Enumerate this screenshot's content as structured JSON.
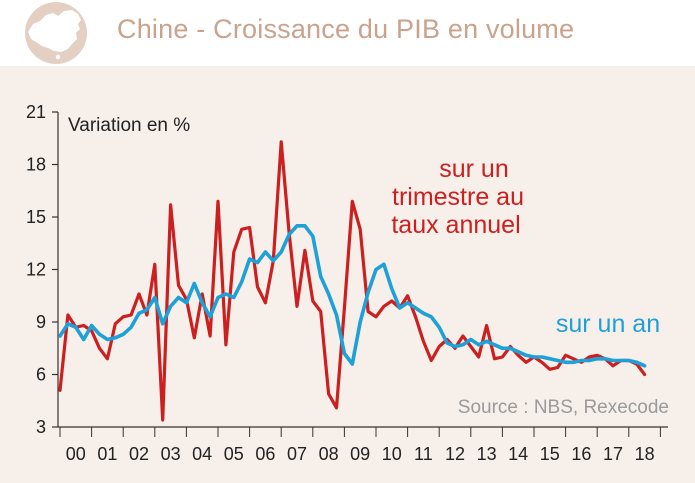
{
  "header": {
    "title": "Chine - Croissance du PIB en volume",
    "logo_icon": "china-map-icon"
  },
  "colors": {
    "panel_bg": "#f7efe9",
    "header_bg": "#ffffff",
    "title": "#c9a38c",
    "logo_circle": "#e4d0c3",
    "quarterly_series": "#cc1f1f",
    "annual_series": "#1ea0d8",
    "source_text": "#9a9a9a",
    "axis_text": "#333333"
  },
  "chart_data": {
    "type": "line",
    "ylabel": "Variation en %",
    "ylim": [
      3,
      21
    ],
    "yticks": [
      3,
      6,
      9,
      12,
      15,
      18,
      21
    ],
    "x_tick_labels": [
      "00",
      "01",
      "02",
      "03",
      "04",
      "05",
      "06",
      "07",
      "08",
      "09",
      "10",
      "11",
      "12",
      "13",
      "14",
      "15",
      "16",
      "17",
      "18"
    ],
    "grid": false,
    "source": "Source : NBS, Rexecode",
    "series": [
      {
        "name": "sur un trimestre au taux annuel",
        "label_lines": [
          "sur un",
          "trimestre au",
          "taux annuel"
        ],
        "color": "#cc1f1f",
        "x": [
          2000.0,
          2000.25,
          2000.5,
          2000.75,
          2001.0,
          2001.25,
          2001.5,
          2001.75,
          2002.0,
          2002.25,
          2002.5,
          2002.75,
          2003.0,
          2003.25,
          2003.5,
          2003.75,
          2004.0,
          2004.25,
          2004.5,
          2004.75,
          2005.0,
          2005.25,
          2005.5,
          2005.75,
          2006.0,
          2006.25,
          2006.5,
          2006.75,
          2007.0,
          2007.25,
          2007.5,
          2007.75,
          2008.0,
          2008.25,
          2008.5,
          2008.75,
          2009.0,
          2009.25,
          2009.5,
          2009.75,
          2010.0,
          2010.25,
          2010.5,
          2010.75,
          2011.0,
          2011.25,
          2011.5,
          2011.75,
          2012.0,
          2012.25,
          2012.5,
          2012.75,
          2013.0,
          2013.25,
          2013.5,
          2013.75,
          2014.0,
          2014.25,
          2014.5,
          2014.75,
          2015.0,
          2015.25,
          2015.5,
          2015.75,
          2016.0,
          2016.25,
          2016.5,
          2016.75,
          2017.0,
          2017.25,
          2017.5,
          2017.75,
          2018.0,
          2018.25,
          2018.5
        ],
        "values": [
          5.1,
          9.4,
          8.7,
          8.8,
          8.5,
          7.5,
          6.9,
          8.9,
          9.3,
          9.4,
          10.6,
          9.4,
          12.3,
          3.4,
          15.7,
          11.1,
          10.3,
          8.1,
          10.6,
          8.2,
          15.9,
          7.7,
          13.0,
          14.3,
          14.4,
          11.0,
          10.1,
          12.5,
          19.3,
          14.1,
          9.9,
          13.1,
          10.2,
          9.6,
          4.9,
          4.1,
          9.8,
          15.9,
          14.3,
          9.6,
          9.3,
          9.9,
          10.2,
          9.8,
          10.5,
          9.3,
          7.9,
          6.8,
          7.6,
          8.0,
          7.5,
          8.2,
          7.6,
          7.0,
          8.8,
          6.9,
          7.0,
          7.6,
          7.1,
          6.7,
          7.0,
          6.7,
          6.3,
          6.4,
          7.1,
          6.9,
          6.7,
          7.0,
          7.1,
          6.9,
          6.5,
          6.8,
          6.8,
          6.6,
          6.0
        ]
      },
      {
        "name": "sur un an",
        "label_lines": [
          "sur un an"
        ],
        "color": "#1ea0d8",
        "x": [
          2000.0,
          2000.25,
          2000.5,
          2000.75,
          2001.0,
          2001.25,
          2001.5,
          2001.75,
          2002.0,
          2002.25,
          2002.5,
          2002.75,
          2003.0,
          2003.25,
          2003.5,
          2003.75,
          2004.0,
          2004.25,
          2004.5,
          2004.75,
          2005.0,
          2005.25,
          2005.5,
          2005.75,
          2006.0,
          2006.25,
          2006.5,
          2006.75,
          2007.0,
          2007.25,
          2007.5,
          2007.75,
          2008.0,
          2008.25,
          2008.5,
          2008.75,
          2009.0,
          2009.25,
          2009.5,
          2009.75,
          2010.0,
          2010.25,
          2010.5,
          2010.75,
          2011.0,
          2011.25,
          2011.5,
          2011.75,
          2012.0,
          2012.25,
          2012.5,
          2012.75,
          2013.0,
          2013.25,
          2013.5,
          2013.75,
          2014.0,
          2014.25,
          2014.5,
          2014.75,
          2015.0,
          2015.25,
          2015.5,
          2015.75,
          2016.0,
          2016.25,
          2016.5,
          2016.75,
          2017.0,
          2017.25,
          2017.5,
          2017.75,
          2018.0,
          2018.25,
          2018.5
        ],
        "values": [
          8.2,
          8.9,
          8.7,
          8.0,
          8.8,
          8.3,
          8.0,
          8.1,
          8.3,
          8.7,
          9.5,
          9.7,
          10.4,
          8.9,
          9.9,
          10.4,
          10.1,
          11.2,
          10.1,
          9.3,
          10.4,
          10.6,
          10.4,
          11.3,
          12.6,
          12.4,
          13.0,
          12.5,
          13.0,
          14.0,
          14.5,
          14.5,
          13.9,
          11.6,
          10.6,
          9.4,
          7.2,
          6.6,
          9.0,
          10.7,
          12.0,
          12.3,
          10.9,
          9.8,
          10.1,
          9.8,
          9.5,
          9.3,
          8.7,
          7.8,
          7.6,
          7.7,
          8.0,
          7.7,
          7.9,
          7.7,
          7.5,
          7.5,
          7.3,
          7.1,
          7.0,
          7.0,
          6.9,
          6.8,
          6.7,
          6.7,
          6.8,
          6.8,
          6.9,
          6.9,
          6.8,
          6.8,
          6.8,
          6.7,
          6.5
        ]
      }
    ]
  }
}
